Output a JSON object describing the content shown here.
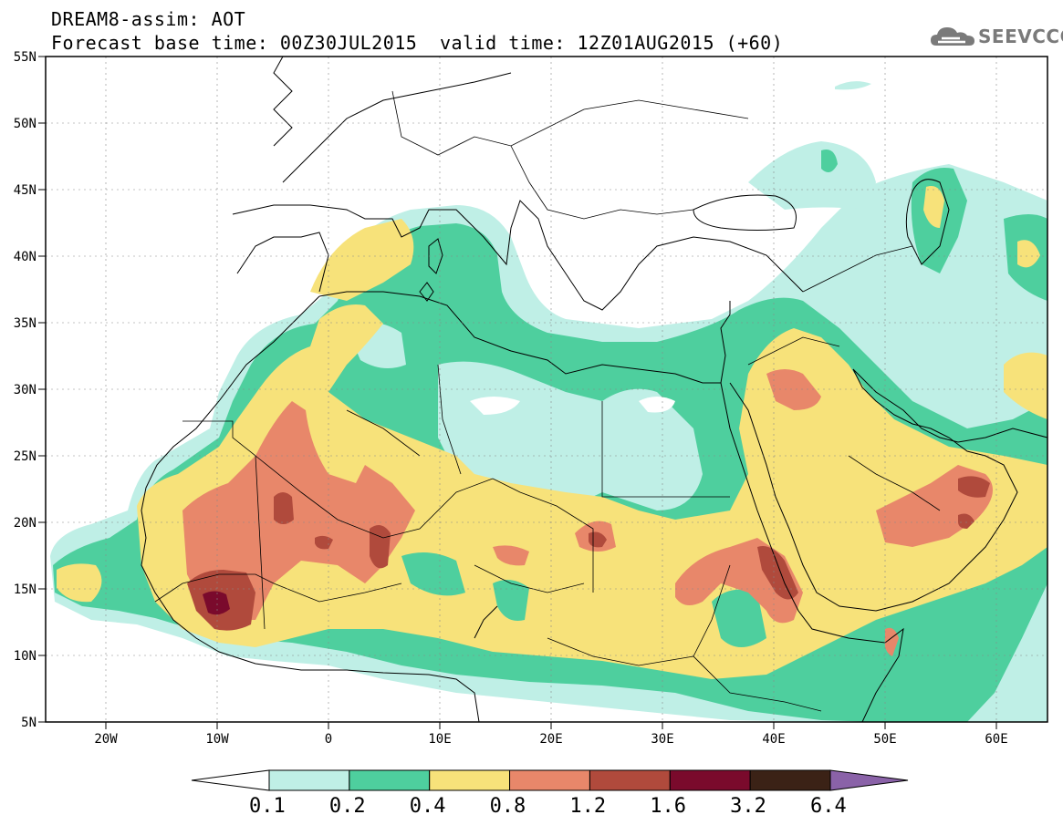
{
  "header": {
    "line1": "DREAM8-assim: AOT",
    "line2": "Forecast base time: 00Z30JUL2015",
    "line2b": "valid time: 12Z01AUG2015 (+60)"
  },
  "logo": {
    "text": "SEEVCCC",
    "icon": "cloud-icon"
  },
  "lat_labels": [
    "55N",
    "50N",
    "45N",
    "40N",
    "35N",
    "30N",
    "25N",
    "20N",
    "15N",
    "10N",
    "5N"
  ],
  "lon_labels": [
    "20W",
    "10W",
    "0",
    "10E",
    "20E",
    "30E",
    "40E",
    "50E",
    "60E"
  ],
  "colorbar": {
    "levels": [
      "0.1",
      "0.2",
      "0.4",
      "0.8",
      "1.2",
      "1.6",
      "3.2",
      "6.4"
    ],
    "colors": [
      "#ffffff",
      "#bfefe6",
      "#4ecf9e",
      "#f7e27a",
      "#e8876a",
      "#b04a3c",
      "#7a0a2c",
      "#3b2216",
      "#8a62a8"
    ]
  },
  "map": {
    "lat_range": [
      5,
      55
    ],
    "lon_range": [
      -25,
      65
    ],
    "variable": "AOT"
  }
}
